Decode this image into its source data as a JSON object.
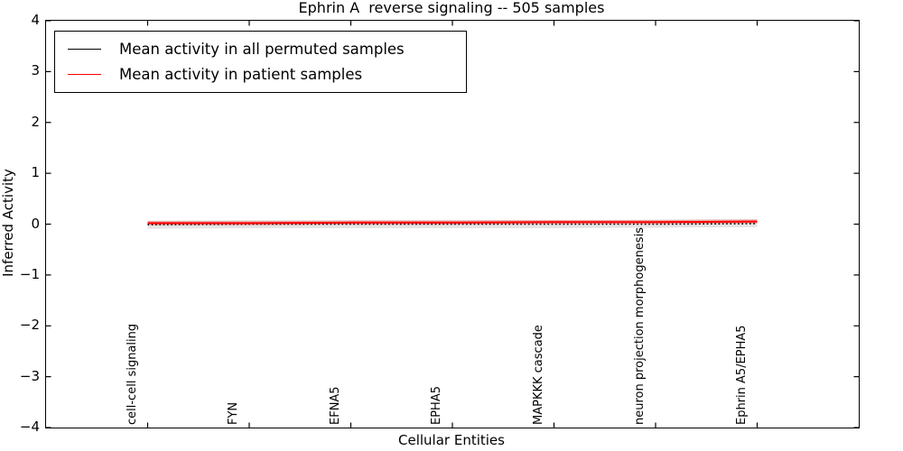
{
  "figure": {
    "background": "#ffffff",
    "accent_red": "#ff0000",
    "line_black": "#000000"
  },
  "chart_data": {
    "type": "line",
    "title": "Ephrin A  reverse signaling -- 505 samples",
    "xlabel": "Cellular Entities",
    "ylabel": "Inferred Activity",
    "ylim": [
      -4,
      4
    ],
    "yticks": [
      4,
      3,
      2,
      1,
      0,
      -1,
      -2,
      -3,
      -4
    ],
    "ytick_labels": [
      "4",
      "3",
      "2",
      "1",
      "0",
      "−1",
      "−2",
      "−3",
      "−4"
    ],
    "grid": false,
    "legend_position": "upper-left",
    "categories": [
      "cell-cell signaling",
      "FYN",
      "EFNA5",
      "EPHA5",
      "MAPKKK cascade",
      "neuron projection morphogenesis",
      "Ephrin A5/EPHA5"
    ],
    "series": [
      {
        "name": "Mean activity in all permuted samples",
        "color": "#000000",
        "line_style": "dotted",
        "values": [
          -0.01,
          0.0,
          0.0,
          0.0,
          0.0,
          0.0,
          0.01
        ],
        "band": {
          "color": "rgba(0,0,0,0.10)",
          "upper": [
            0.07,
            0.08,
            0.08,
            0.08,
            0.08,
            0.09,
            0.1
          ],
          "lower": [
            -0.09,
            -0.08,
            -0.08,
            -0.08,
            -0.08,
            -0.07,
            -0.06
          ]
        }
      },
      {
        "name": "Mean activity in patient samples",
        "color": "#ff0000",
        "line_style": "solid",
        "values": [
          0.02,
          0.02,
          0.03,
          0.03,
          0.04,
          0.04,
          0.05
        ],
        "band": {
          "color": "rgba(255,0,0,0.28)",
          "upper": [
            0.06,
            0.06,
            0.07,
            0.07,
            0.08,
            0.08,
            0.09
          ],
          "lower": [
            -0.02,
            -0.02,
            -0.01,
            -0.01,
            0.0,
            0.0,
            0.01
          ]
        }
      }
    ]
  }
}
